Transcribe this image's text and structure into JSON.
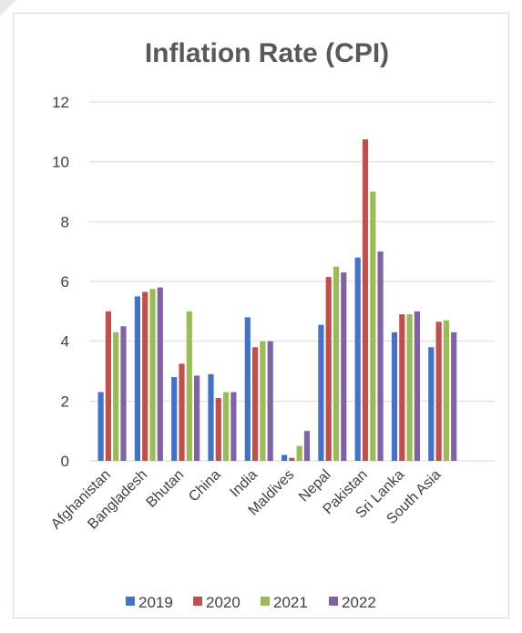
{
  "chart_data": {
    "type": "bar",
    "title": "Inflation Rate (CPI)",
    "xlabel": "",
    "ylabel": "",
    "ylim": [
      0,
      12
    ],
    "yticks": [
      0,
      2,
      4,
      6,
      8,
      10,
      12
    ],
    "grid": true,
    "legend_position": "bottom",
    "categories": [
      "Afghanistan",
      "Bangladesh",
      "Bhutan",
      "China",
      "India",
      "Maldives",
      "Nepal",
      "Pakistan",
      "Sri Lanka",
      "South Asia"
    ],
    "series": [
      {
        "name": "2019",
        "color": "#4472C4",
        "values": [
          2.3,
          5.5,
          2.8,
          2.9,
          4.8,
          0.2,
          4.55,
          6.8,
          4.3,
          3.8
        ]
      },
      {
        "name": "2020",
        "color": "#C0504D",
        "values": [
          5.0,
          5.65,
          3.25,
          2.1,
          3.8,
          0.1,
          6.15,
          10.75,
          4.9,
          4.65
        ]
      },
      {
        "name": "2021",
        "color": "#9BBB59",
        "values": [
          4.3,
          5.75,
          5.0,
          2.3,
          4.0,
          0.5,
          6.5,
          9.0,
          4.9,
          4.7
        ]
      },
      {
        "name": "2022",
        "color": "#8064A2",
        "values": [
          4.5,
          5.8,
          2.85,
          2.3,
          4.0,
          1.0,
          6.3,
          7.0,
          5.0,
          4.3
        ]
      }
    ]
  }
}
